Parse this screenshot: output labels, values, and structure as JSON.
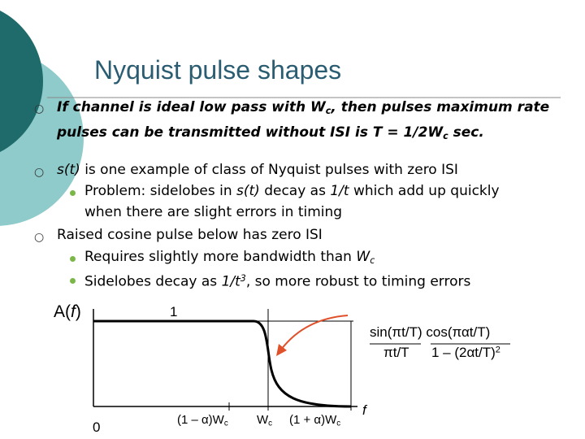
{
  "title": "Nyquist pulse shapes",
  "bullets": [
    {
      "parts": [
        "If channel is ideal low pass with W",
        "c",
        ", then pulses maximum rate pulses can be transmitted without ISI is T = 1/2W",
        "c",
        " sec."
      ]
    },
    {
      "parts": [
        "s(t)",
        " is one example of class of Nyquist pulses with zero ISI"
      ],
      "sub": [
        {
          "parts": [
            "Problem:  sidelobes in ",
            "s(t)",
            " decay as ",
            "1/t",
            " which add up quickly when there are slight errors in timing"
          ]
        }
      ]
    },
    {
      "parts": [
        "Raised cosine pulse below has zero ISI"
      ],
      "sub": [
        {
          "parts": [
            "Requires slightly more bandwidth than ",
            "W",
            "c"
          ]
        },
        {
          "parts": [
            "Sidelobes decay as ",
            "1/t",
            "3",
            ", so more robust to timing errors"
          ]
        }
      ]
    }
  ],
  "figure": {
    "y_label": [
      "A(",
      "f",
      ")"
    ],
    "top_label": "1",
    "origin_label": "0",
    "x_labels": [
      [
        "(1 – α)W",
        "c"
      ],
      [
        "W",
        "c"
      ],
      [
        "(1 + α)W",
        "c"
      ]
    ],
    "x_axis_label": "f",
    "formula": {
      "numerator": [
        "sin(πt/T)",
        "cos(παt/T)"
      ],
      "denominator": [
        "πt/T",
        "1 – (2αt/T)",
        "2"
      ]
    }
  }
}
